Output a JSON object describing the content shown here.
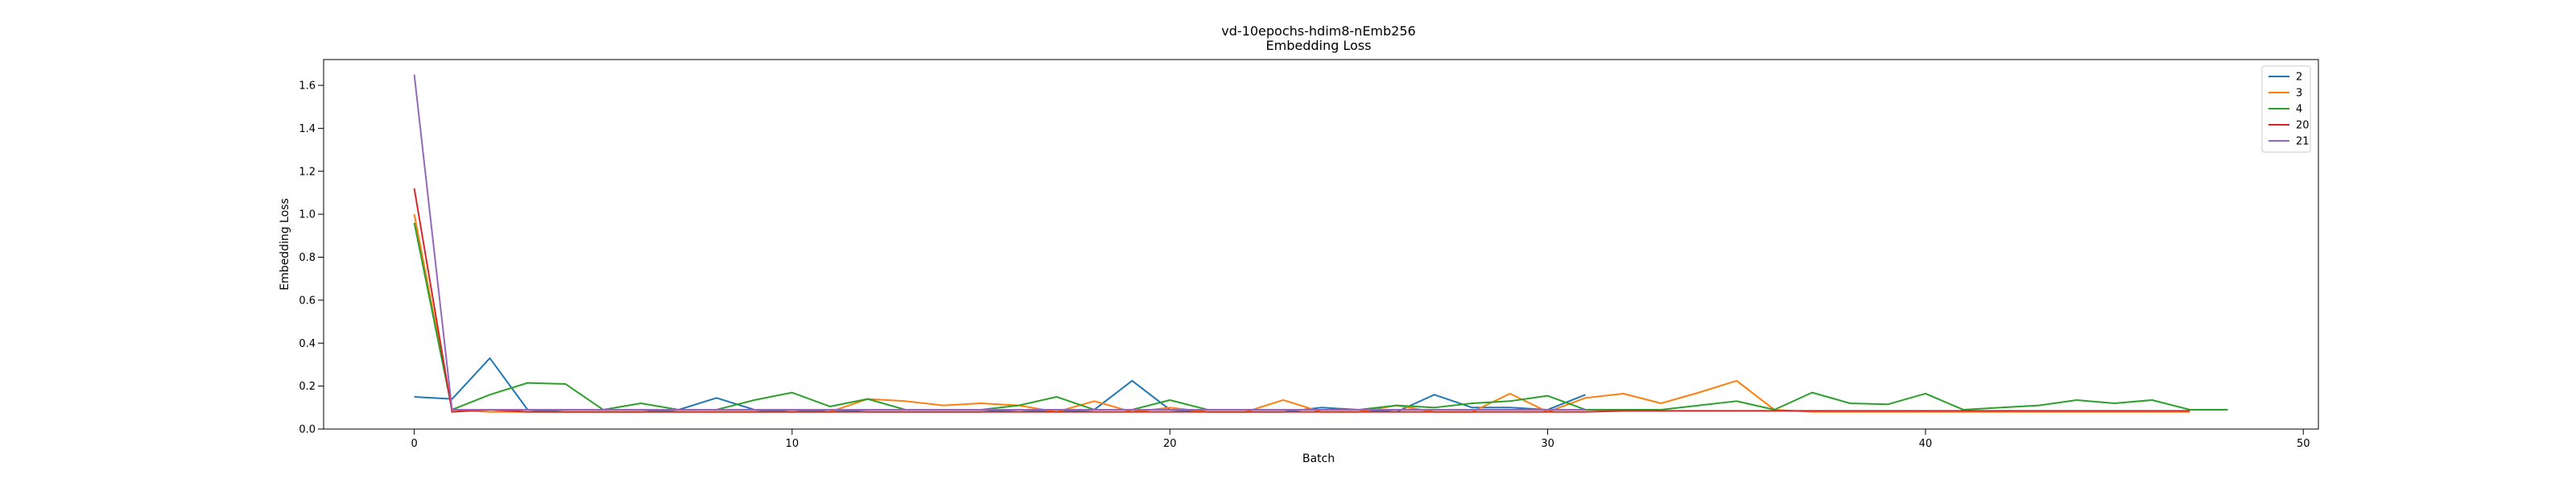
{
  "chart_data": {
    "type": "line",
    "title": "vd-10epochs-hdim8-nEmb256",
    "subtitle": "Embedding Loss",
    "xlabel": "Batch",
    "ylabel": "Embedding Loss",
    "xlim": [
      -2.4,
      50.4
    ],
    "ylim": [
      0.0,
      1.72
    ],
    "xticks": [
      0,
      10,
      20,
      30,
      40,
      50
    ],
    "yticks": [
      0.0,
      0.2,
      0.4,
      0.6,
      0.8,
      1.0,
      1.2,
      1.4,
      1.6
    ],
    "grid": false,
    "legend_position": "top-right",
    "series": [
      {
        "name": "2",
        "color": "#1f77b4",
        "x": [
          0,
          1,
          2,
          3,
          4,
          5,
          6,
          7,
          8,
          9,
          10,
          11,
          12,
          13,
          14,
          15,
          16,
          17,
          18,
          19,
          20,
          21,
          22,
          23,
          24,
          25,
          26,
          27,
          28,
          29,
          30,
          31
        ],
        "values": [
          0.15,
          0.14,
          0.33,
          0.09,
          0.08,
          0.08,
          0.08,
          0.09,
          0.145,
          0.09,
          0.08,
          0.09,
          0.08,
          0.08,
          0.08,
          0.08,
          0.09,
          0.08,
          0.09,
          0.225,
          0.09,
          0.08,
          0.08,
          0.08,
          0.1,
          0.09,
          0.08,
          0.16,
          0.1,
          0.1,
          0.09,
          0.16
        ]
      },
      {
        "name": "3",
        "color": "#ff7f0e",
        "x": [
          0,
          1,
          2,
          3,
          4,
          5,
          6,
          7,
          8,
          9,
          10,
          11,
          12,
          13,
          14,
          15,
          16,
          17,
          18,
          19,
          20,
          21,
          22,
          23,
          24,
          25,
          26,
          27,
          28,
          29,
          30,
          31,
          32,
          33,
          34,
          35,
          36,
          37,
          38,
          39,
          40,
          41,
          42,
          43,
          44,
          45,
          46,
          47
        ],
        "values": [
          1.0,
          0.09,
          0.08,
          0.08,
          0.08,
          0.08,
          0.08,
          0.08,
          0.08,
          0.08,
          0.08,
          0.08,
          0.14,
          0.13,
          0.11,
          0.12,
          0.11,
          0.08,
          0.13,
          0.08,
          0.1,
          0.08,
          0.08,
          0.135,
          0.08,
          0.08,
          0.11,
          0.08,
          0.08,
          0.165,
          0.08,
          0.145,
          0.165,
          0.12,
          0.17,
          0.225,
          0.09,
          0.08,
          0.08,
          0.08,
          0.08,
          0.08,
          0.08,
          0.08,
          0.08,
          0.08,
          0.08,
          0.08
        ]
      },
      {
        "name": "4",
        "color": "#2ca02c",
        "x": [
          0,
          1,
          2,
          3,
          4,
          5,
          6,
          7,
          8,
          9,
          10,
          11,
          12,
          13,
          14,
          15,
          16,
          17,
          18,
          19,
          20,
          21,
          22,
          23,
          24,
          25,
          26,
          27,
          28,
          29,
          30,
          31,
          32,
          33,
          34,
          35,
          36,
          37,
          38,
          39,
          40,
          41,
          42,
          43,
          44,
          45,
          46,
          47,
          48
        ],
        "values": [
          0.96,
          0.09,
          0.16,
          0.215,
          0.21,
          0.09,
          0.12,
          0.09,
          0.09,
          0.135,
          0.17,
          0.105,
          0.14,
          0.09,
          0.09,
          0.09,
          0.11,
          0.15,
          0.09,
          0.09,
          0.135,
          0.09,
          0.09,
          0.09,
          0.09,
          0.09,
          0.11,
          0.1,
          0.12,
          0.13,
          0.155,
          0.09,
          0.09,
          0.09,
          0.11,
          0.13,
          0.09,
          0.17,
          0.12,
          0.115,
          0.165,
          0.09,
          0.1,
          0.11,
          0.135,
          0.12,
          0.135,
          0.09,
          0.09
        ]
      },
      {
        "name": "20",
        "color": "#d62728",
        "x": [
          0,
          1,
          2,
          3,
          4,
          5,
          6,
          7,
          8,
          9,
          10,
          11,
          12,
          13,
          14,
          15,
          16,
          17,
          18,
          19,
          20,
          21,
          22,
          23,
          24,
          25,
          26,
          27,
          28,
          29,
          30,
          31,
          32,
          33,
          34,
          35,
          36,
          37,
          38,
          39,
          40,
          41,
          42,
          43,
          44,
          45,
          46,
          47
        ],
        "values": [
          1.12,
          0.08,
          0.09,
          0.08,
          0.08,
          0.08,
          0.08,
          0.08,
          0.08,
          0.08,
          0.08,
          0.08,
          0.08,
          0.08,
          0.08,
          0.08,
          0.08,
          0.08,
          0.08,
          0.08,
          0.08,
          0.08,
          0.08,
          0.08,
          0.08,
          0.08,
          0.08,
          0.08,
          0.08,
          0.08,
          0.08,
          0.08,
          0.085,
          0.085,
          0.085,
          0.085,
          0.085,
          0.085,
          0.085,
          0.085,
          0.085,
          0.085,
          0.085,
          0.085,
          0.085,
          0.085,
          0.085,
          0.085
        ]
      },
      {
        "name": "21",
        "color": "#9467bd",
        "x": [
          0,
          1,
          2,
          3,
          4,
          5,
          6,
          7,
          8,
          9,
          10,
          11,
          12,
          13,
          14,
          15,
          16,
          17,
          18,
          19,
          20,
          21,
          22,
          23,
          24,
          25,
          26,
          27,
          28,
          29,
          30,
          31
        ],
        "values": [
          1.65,
          0.09,
          0.09,
          0.09,
          0.09,
          0.09,
          0.09,
          0.09,
          0.09,
          0.09,
          0.09,
          0.09,
          0.09,
          0.09,
          0.09,
          0.09,
          0.09,
          0.09,
          0.09,
          0.09,
          0.09,
          0.09,
          0.09,
          0.09,
          0.09,
          0.09,
          0.09,
          0.09,
          0.09,
          0.09,
          0.09,
          0.09
        ]
      }
    ]
  }
}
